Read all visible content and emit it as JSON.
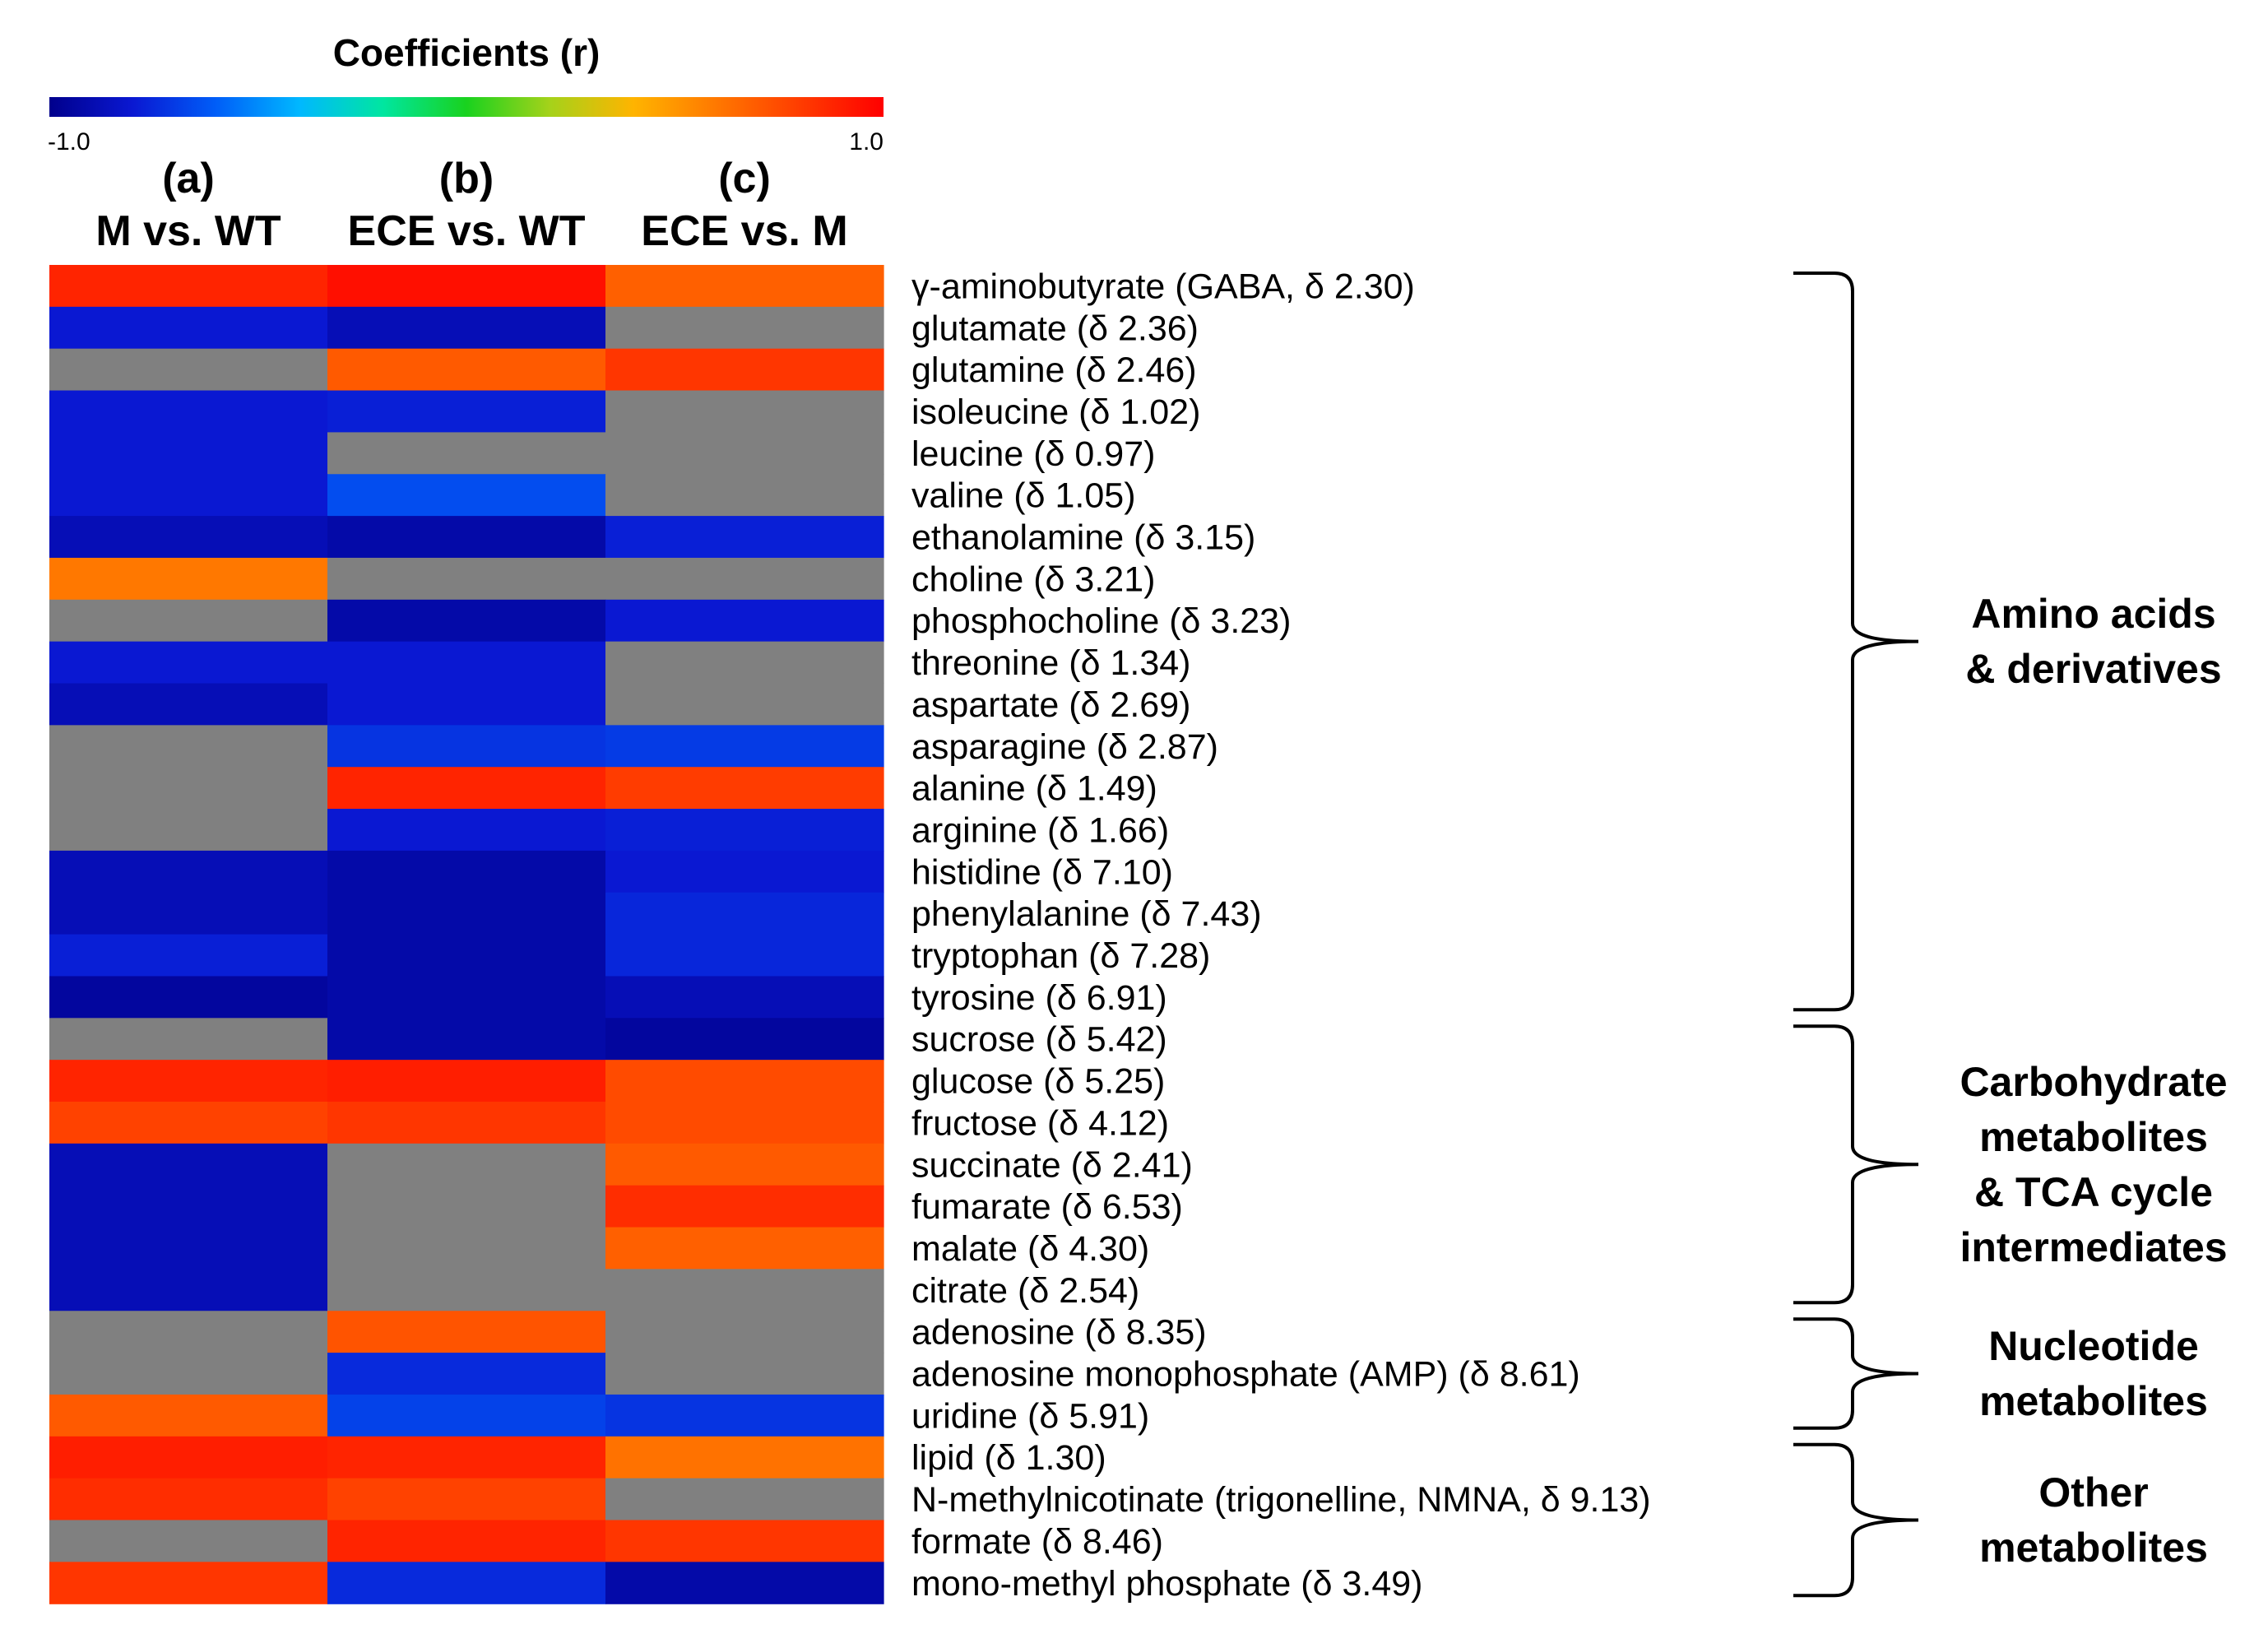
{
  "chart_data": {
    "type": "heatmap",
    "title": "Coefficients (r)",
    "colorbar": {
      "min": -1.0,
      "max": 1.0,
      "min_label": "-1.0",
      "max_label": "1.0",
      "stops": [
        "#00008c",
        "#0a18d2",
        "#005ef8",
        "#00b8ff",
        "#00e6a0",
        "#19d21e",
        "#a5d21a",
        "#ffb400",
        "#ff7800",
        "#ff3c00",
        "#ff0000"
      ]
    },
    "not_significant_color": "#808080",
    "columns": [
      {
        "letter": "(a)",
        "label": "M vs. WT"
      },
      {
        "letter": "(b)",
        "label": "ECE vs. WT"
      },
      {
        "letter": "(c)",
        "label": "ECE vs. M"
      }
    ],
    "rows": [
      "γ-aminobutyrate (GABA, δ 2.30)",
      "glutamate (δ 2.36)",
      "glutamine (δ 2.46)",
      "isoleucine (δ 1.02)",
      "leucine (δ 0.97)",
      "valine (δ 1.05)",
      "ethanolamine (δ 3.15)",
      "choline (δ 3.21)",
      "phosphocholine (δ 3.23)",
      "threonine (δ 1.34)",
      "aspartate (δ 2.69)",
      "asparagine (δ 2.87)",
      "alanine (δ 1.49)",
      "arginine (δ 1.66)",
      "histidine (δ 7.10)",
      "phenylalanine (δ 7.43)",
      "tryptophan (δ 7.28)",
      "tyrosine (δ 6.91)",
      "sucrose (δ 5.42)",
      "glucose (δ 5.25)",
      "fructose (δ 4.12)",
      "succinate (δ 2.41)",
      "fumarate (δ 6.53)",
      "malate (δ 4.30)",
      "citrate (δ 2.54)",
      "adenosine (δ 8.35)",
      "adenosine monophosphate (AMP) (δ 8.61)",
      "uridine (δ 5.91)",
      "lipid (δ 1.30)",
      "N-methylnicotinate (trigonelline, NMNA, δ 9.13)",
      "formate (δ 8.46)",
      "mono-methyl phosphate (δ 3.49)"
    ],
    "values": [
      [
        0.88,
        0.95,
        0.68
      ],
      [
        -0.8,
        -0.88,
        null
      ],
      [
        null,
        0.7,
        0.82
      ],
      [
        -0.8,
        -0.78,
        null
      ],
      [
        -0.8,
        null,
        null
      ],
      [
        -0.8,
        -0.65,
        null
      ],
      [
        -0.88,
        -0.92,
        -0.78
      ],
      [
        0.6,
        null,
        null
      ],
      [
        null,
        -0.92,
        -0.8
      ],
      [
        -0.8,
        -0.8,
        null
      ],
      [
        -0.88,
        -0.8,
        null
      ],
      [
        null,
        -0.72,
        -0.7
      ],
      [
        null,
        0.88,
        0.8
      ],
      [
        null,
        -0.8,
        -0.78
      ],
      [
        -0.88,
        -0.92,
        -0.8
      ],
      [
        -0.88,
        -0.92,
        -0.76
      ],
      [
        -0.78,
        -0.92,
        -0.76
      ],
      [
        -0.95,
        -0.92,
        -0.88
      ],
      [
        null,
        -0.92,
        -0.95
      ],
      [
        0.88,
        0.9,
        0.75
      ],
      [
        0.78,
        0.82,
        0.75
      ],
      [
        -0.88,
        null,
        0.7
      ],
      [
        -0.88,
        null,
        0.85
      ],
      [
        -0.88,
        null,
        0.68
      ],
      [
        -0.88,
        null,
        null
      ],
      [
        null,
        0.72,
        null
      ],
      [
        null,
        -0.75,
        null
      ],
      [
        0.7,
        -0.68,
        -0.72
      ],
      [
        0.9,
        0.88,
        0.62
      ],
      [
        0.85,
        0.78,
        null
      ],
      [
        null,
        0.88,
        0.82
      ],
      [
        0.82,
        -0.75,
        -0.92
      ]
    ],
    "groups": [
      {
        "lines": [
          "Amino acids",
          "& derivatives"
        ],
        "start": 0,
        "end": 17
      },
      {
        "lines": [
          "Carbohydrate",
          "metabolites",
          "& TCA cycle",
          "intermediates"
        ],
        "start": 18,
        "end": 24
      },
      {
        "lines": [
          "Nucleotide",
          "metabolites"
        ],
        "start": 25,
        "end": 27
      },
      {
        "lines": [
          "Other",
          "metabolites"
        ],
        "start": 28,
        "end": 31
      }
    ]
  }
}
